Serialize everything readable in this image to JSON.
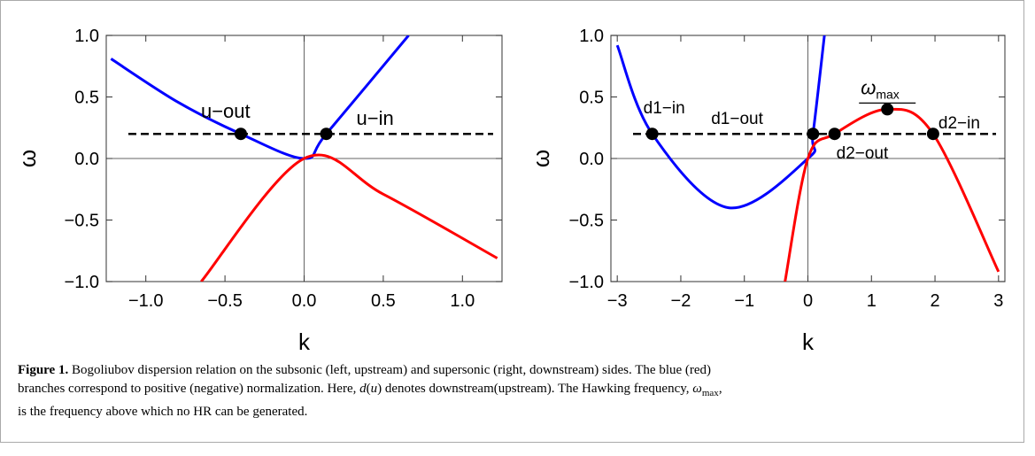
{
  "chart_data": [
    {
      "type": "line",
      "xlabel": "k",
      "ylabel": "ω",
      "xlim": [
        -1.25,
        1.25
      ],
      "ylim": [
        -1.0,
        1.0
      ],
      "x_ticks": [
        "−1.0",
        "−0.5",
        "0.0",
        "0.5",
        "1.0"
      ],
      "y_ticks": [
        "1.0",
        "0.5",
        "0.0",
        "−0.5",
        "−1.0"
      ],
      "series": [
        {
          "color": "#0000ff",
          "points": [
            [
              -1.22,
              0.81
            ],
            [
              -0.8,
              0.46
            ],
            [
              -0.4,
              0.2
            ],
            [
              0,
              0
            ],
            [
              0.14,
              0.2
            ],
            [
              0.66,
              1.0
            ]
          ]
        },
        {
          "color": "#ff0000",
          "points": [
            [
              -0.65,
              -1.0
            ],
            [
              0,
              0
            ],
            [
              0.5,
              -0.29
            ],
            [
              1.22,
              -0.81
            ]
          ]
        }
      ],
      "hline": {
        "y": 0.2,
        "style": "dashed"
      },
      "points": [
        {
          "x": -0.4,
          "y": 0.2,
          "label": "u−out"
        },
        {
          "x": 0.14,
          "y": 0.2,
          "label": "u−in"
        }
      ]
    },
    {
      "type": "line",
      "xlabel": "k",
      "ylabel": "ω",
      "xlim": [
        -3.1,
        3.1
      ],
      "ylim": [
        -1.0,
        1.0
      ],
      "x_ticks": [
        "−3",
        "−2",
        "−1",
        "0",
        "1",
        "2",
        "3"
      ],
      "y_ticks": [
        "1.0",
        "0.5",
        "0.0",
        "−0.5",
        "−1.0"
      ],
      "series": [
        {
          "color": "#0000ff",
          "points": [
            [
              -3,
              0.92
            ],
            [
              -2.45,
              0.2
            ],
            [
              -1.25,
              -0.4
            ],
            [
              0,
              0
            ],
            [
              0.08,
              0.2
            ],
            [
              0.26,
              1.0
            ]
          ]
        },
        {
          "color": "#ff0000",
          "points": [
            [
              -0.36,
              -1.0
            ],
            [
              0,
              0
            ],
            [
              0.42,
              0.2
            ],
            [
              1.25,
              0.4
            ],
            [
              1.97,
              0.2
            ],
            [
              3,
              -0.92
            ]
          ]
        }
      ],
      "hline": {
        "y": 0.2,
        "style": "dashed"
      },
      "points": [
        {
          "x": -2.45,
          "y": 0.2,
          "label": "d1−in"
        },
        {
          "x": 0.08,
          "y": 0.2,
          "label": "d1−out"
        },
        {
          "x": 0.42,
          "y": 0.2,
          "label": "d2−out"
        },
        {
          "x": 1.97,
          "y": 0.2,
          "label": "d2−in"
        },
        {
          "x": 1.25,
          "y": 0.4,
          "label": "ωmax"
        }
      ],
      "omega_max_label": {
        "base": "ω",
        "sub": "max"
      }
    }
  ],
  "caption": {
    "label": "Figure 1.",
    "line1": " Bogoliubov dispersion relation on the subsonic (left, upstream) and supersonic (right, downstream) sides. The blue (red)",
    "line2a": "branches correspond to positive (negative) normalization. Here, ",
    "d": "d",
    "paren_u_open": "(",
    "u": "u",
    "paren_u_close": ")",
    "line2b": " denotes downstream(upstream). The Hawking frequency, ",
    "omega": "ω",
    "omega_sub": "max",
    "line2c": ",",
    "line3": "is the frequency above which no HR can be generated."
  }
}
